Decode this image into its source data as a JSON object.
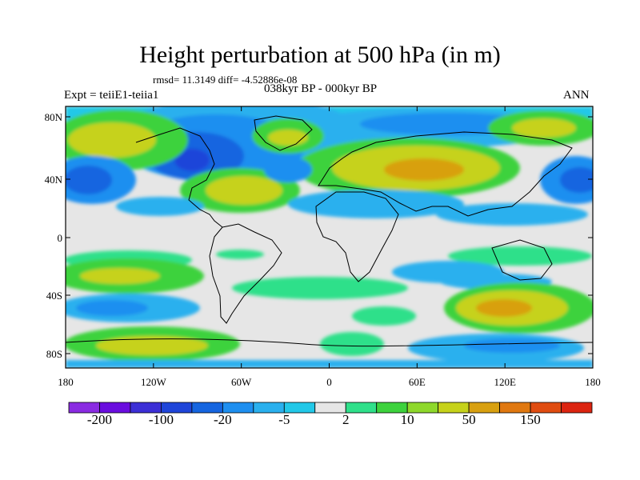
{
  "title": "Height perturbation at 500 hPa (in m)",
  "stats": "rmsd= 11.3149 diff= -4.52886e-08",
  "period": "038kyr BP - 000kyr BP",
  "experiment": "Expt = teiiE1-teiia1",
  "season": "ANN",
  "lat_ticks": [
    "80N",
    "40N",
    "0",
    "40S",
    "80S"
  ],
  "lon_ticks": [
    "180",
    "120W",
    "60W",
    "0",
    "60E",
    "120E",
    "180"
  ],
  "colorbar": {
    "colors": [
      "#8a2be2",
      "#6a0ddf",
      "#3c2fd6",
      "#1f45d9",
      "#1565e0",
      "#1e8ff0",
      "#2ab0ee",
      "#22c8e8",
      "#e6e6e6",
      "#2fe08a",
      "#3dd23d",
      "#8ed82b",
      "#c6d21a",
      "#d8a010",
      "#e07810",
      "#e04c10",
      "#dc2410"
    ],
    "labels": [
      "-200",
      "-100",
      "-20",
      "-5",
      "2",
      "10",
      "50",
      "150"
    ]
  }
}
